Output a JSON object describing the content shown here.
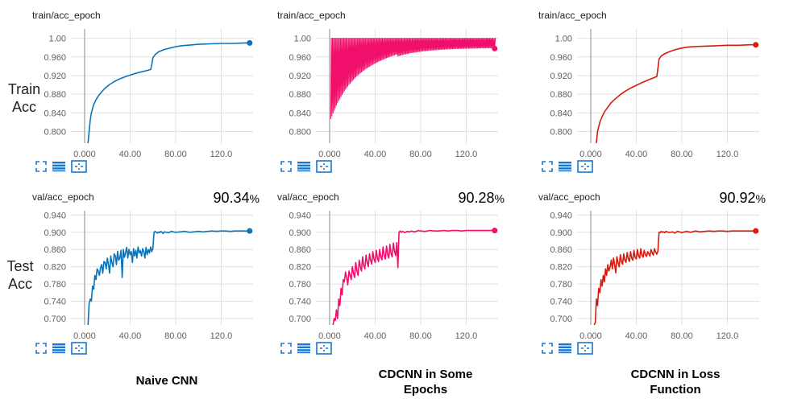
{
  "row_labels": {
    "train": [
      "Train",
      "Acc"
    ],
    "test": [
      "Test",
      "Acc"
    ]
  },
  "captions": [
    [
      "Naive CNN"
    ],
    [
      "CDCNN in Some",
      "Epochs"
    ],
    [
      "CDCNN in Loss",
      "Function"
    ]
  ],
  "colors": {
    "naive": "#0b74b8",
    "some_epochs": "#f0106b",
    "loss_function": "#d81b0e",
    "grid": "#e0e0e0",
    "toolbar": "#1976d2"
  },
  "toolbar_icons": [
    "expand-icon",
    "data-list-icon",
    "fit-domain-icon"
  ],
  "chart_data": [
    {
      "id": "naive-train",
      "type": "line",
      "title": "train/acc_epoch",
      "accuracy": "",
      "color": "naive",
      "model": "naive",
      "split": "train",
      "xlim": [
        -12,
        148
      ],
      "ylim": [
        0.775,
        1.02
      ],
      "x_ticks": [
        0,
        40,
        80,
        120
      ],
      "x_tick_labels": [
        "0.000",
        "40.00",
        "80.00",
        "120.0"
      ],
      "y_ticks": [
        0.8,
        0.84,
        0.88,
        0.92,
        0.96,
        1.0
      ],
      "y_tick_labels": [
        "0.800",
        "0.840",
        "0.880",
        "0.920",
        "0.960",
        "1.00"
      ],
      "series": [
        {
          "x": [
            3,
            4,
            5,
            6,
            8,
            10,
            12,
            15,
            18,
            22,
            26,
            30,
            35,
            40,
            45,
            50,
            55,
            58,
            59,
            60,
            62,
            65,
            70,
            75,
            80,
            85,
            90,
            100,
            110,
            120,
            130,
            140,
            145
          ],
          "y": [
            0.775,
            0.8,
            0.825,
            0.84,
            0.858,
            0.868,
            0.876,
            0.885,
            0.893,
            0.901,
            0.907,
            0.912,
            0.917,
            0.921,
            0.925,
            0.928,
            0.931,
            0.933,
            0.943,
            0.958,
            0.965,
            0.971,
            0.976,
            0.979,
            0.982,
            0.984,
            0.985,
            0.987,
            0.988,
            0.989,
            0.989,
            0.99,
            0.99
          ]
        }
      ]
    },
    {
      "id": "naive-val",
      "type": "line",
      "title": "val/acc_epoch",
      "accuracy": "90.34",
      "color": "naive",
      "model": "naive",
      "split": "val",
      "xlim": [
        -12,
        148
      ],
      "ylim": [
        0.685,
        0.95
      ],
      "x_ticks": [
        0,
        40,
        80,
        120
      ],
      "x_tick_labels": [
        "0.000",
        "40.00",
        "80.00",
        "120.0"
      ],
      "y_ticks": [
        0.7,
        0.74,
        0.78,
        0.82,
        0.86,
        0.9,
        0.94
      ],
      "y_tick_labels": [
        "0.700",
        "0.740",
        "0.780",
        "0.820",
        "0.860",
        "0.900",
        "0.940"
      ],
      "series": [
        {
          "x": [
            3,
            4,
            5,
            6,
            7,
            8,
            9,
            10,
            11,
            12,
            13,
            14,
            15,
            16,
            17,
            18,
            19,
            20,
            21,
            22,
            23,
            24,
            25,
            26,
            27,
            28,
            29,
            30,
            31,
            32,
            33,
            34,
            35,
            36,
            37,
            38,
            39,
            40,
            41,
            42,
            43,
            44,
            45,
            46,
            47,
            48,
            49,
            50,
            51,
            52,
            53,
            54,
            55,
            56,
            57,
            58,
            59,
            60,
            61,
            62,
            63,
            64,
            65,
            66,
            67,
            68,
            69,
            70,
            72,
            74,
            76,
            78,
            80,
            84,
            88,
            92,
            96,
            100,
            104,
            108,
            112,
            116,
            120,
            124,
            128,
            132,
            136,
            140,
            145
          ],
          "y": [
            0.685,
            0.735,
            0.745,
            0.74,
            0.775,
            0.768,
            0.8,
            0.79,
            0.815,
            0.81,
            0.8,
            0.818,
            0.825,
            0.805,
            0.832,
            0.83,
            0.815,
            0.84,
            0.825,
            0.805,
            0.845,
            0.83,
            0.82,
            0.85,
            0.845,
            0.825,
            0.856,
            0.835,
            0.84,
            0.858,
            0.795,
            0.86,
            0.842,
            0.853,
            0.865,
            0.84,
            0.86,
            0.848,
            0.855,
            0.83,
            0.862,
            0.845,
            0.858,
            0.84,
            0.866,
            0.852,
            0.857,
            0.845,
            0.862,
            0.855,
            0.84,
            0.865,
            0.848,
            0.86,
            0.852,
            0.866,
            0.855,
            0.862,
            0.9,
            0.902,
            0.9,
            0.898,
            0.901,
            0.899,
            0.902,
            0.9,
            0.897,
            0.901,
            0.9,
            0.899,
            0.902,
            0.901,
            0.9,
            0.901,
            0.902,
            0.9,
            0.901,
            0.902,
            0.901,
            0.902,
            0.903,
            0.902,
            0.903,
            0.903,
            0.902,
            0.903,
            0.903,
            0.903,
            0.903
          ]
        }
      ]
    },
    {
      "id": "some-train",
      "type": "line",
      "title": "train/acc_epoch",
      "accuracy": "",
      "color": "some_epochs",
      "model": "some_epochs",
      "split": "train",
      "xlim": [
        -12,
        148
      ],
      "ylim": [
        0.775,
        1.02
      ],
      "x_ticks": [
        0,
        40,
        80,
        120
      ],
      "x_tick_labels": [
        "0.000",
        "40.00",
        "80.00",
        "120.0"
      ],
      "y_ticks": [
        0.8,
        0.84,
        0.88,
        0.92,
        0.96,
        1.0
      ],
      "y_tick_labels": [
        "0.800",
        "0.840",
        "0.880",
        "0.920",
        "0.960",
        "1.00"
      ],
      "series": [
        {
          "x": [],
          "y": []
        }
      ]
    },
    {
      "id": "some-val",
      "type": "line",
      "title": "val/acc_epoch",
      "accuracy": "90.28",
      "color": "some_epochs",
      "model": "some_epochs",
      "split": "val",
      "xlim": [
        -12,
        148
      ],
      "ylim": [
        0.685,
        0.95
      ],
      "x_ticks": [
        0,
        40,
        80,
        120
      ],
      "x_tick_labels": [
        "0.000",
        "40.00",
        "80.00",
        "120.0"
      ],
      "y_ticks": [
        0.7,
        0.74,
        0.78,
        0.82,
        0.86,
        0.9,
        0.94
      ],
      "y_tick_labels": [
        "0.700",
        "0.740",
        "0.780",
        "0.820",
        "0.860",
        "0.900",
        "0.940"
      ],
      "series": [
        {
          "x": [
            3,
            4,
            5,
            6,
            7,
            8,
            9,
            10,
            11,
            12,
            13,
            14,
            15,
            16,
            17,
            18,
            19,
            20,
            21,
            22,
            23,
            24,
            25,
            26,
            27,
            28,
            29,
            30,
            31,
            32,
            33,
            34,
            35,
            36,
            37,
            38,
            39,
            40,
            41,
            42,
            43,
            44,
            45,
            46,
            47,
            48,
            49,
            50,
            51,
            52,
            53,
            54,
            55,
            56,
            57,
            58,
            59,
            60,
            61,
            62,
            63,
            64,
            65,
            66,
            68,
            70,
            72,
            74,
            76,
            78,
            80,
            84,
            88,
            92,
            96,
            100,
            104,
            108,
            112,
            116,
            120,
            124,
            128,
            132,
            136,
            140,
            145
          ],
          "y": [
            0.685,
            0.7,
            0.695,
            0.72,
            0.7,
            0.745,
            0.73,
            0.77,
            0.755,
            0.79,
            0.785,
            0.808,
            0.795,
            0.778,
            0.81,
            0.8,
            0.79,
            0.82,
            0.805,
            0.795,
            0.83,
            0.812,
            0.8,
            0.835,
            0.82,
            0.81,
            0.843,
            0.823,
            0.815,
            0.847,
            0.83,
            0.82,
            0.85,
            0.835,
            0.826,
            0.855,
            0.838,
            0.83,
            0.858,
            0.84,
            0.832,
            0.86,
            0.843,
            0.836,
            0.866,
            0.845,
            0.838,
            0.868,
            0.848,
            0.84,
            0.872,
            0.85,
            0.843,
            0.875,
            0.855,
            0.846,
            0.876,
            0.818,
            0.9,
            0.903,
            0.9,
            0.902,
            0.901,
            0.899,
            0.902,
            0.901,
            0.903,
            0.901,
            0.902,
            0.904,
            0.903,
            0.902,
            0.904,
            0.903,
            0.903,
            0.904,
            0.903,
            0.904,
            0.904,
            0.903,
            0.904,
            0.904,
            0.904,
            0.904,
            0.904,
            0.904,
            0.904
          ]
        }
      ]
    },
    {
      "id": "loss-train",
      "type": "line",
      "title": "train/acc_epoch",
      "accuracy": "",
      "color": "loss_function",
      "model": "loss_function",
      "split": "train",
      "xlim": [
        -12,
        148
      ],
      "ylim": [
        0.775,
        1.02
      ],
      "x_ticks": [
        0,
        40,
        80,
        120
      ],
      "x_tick_labels": [
        "0.000",
        "40.00",
        "80.00",
        "120.0"
      ],
      "y_ticks": [
        0.8,
        0.84,
        0.88,
        0.92,
        0.96,
        1.0
      ],
      "y_tick_labels": [
        "0.800",
        "0.840",
        "0.880",
        "0.920",
        "0.960",
        "1.00"
      ],
      "series": [
        {
          "x": [
            5,
            6,
            8,
            10,
            12,
            15,
            18,
            22,
            26,
            30,
            35,
            40,
            45,
            50,
            55,
            58,
            59,
            60,
            62,
            65,
            70,
            75,
            80,
            85,
            90,
            100,
            110,
            120,
            130,
            140,
            145
          ],
          "y": [
            0.775,
            0.8,
            0.82,
            0.832,
            0.842,
            0.852,
            0.862,
            0.871,
            0.879,
            0.886,
            0.893,
            0.899,
            0.905,
            0.91,
            0.915,
            0.918,
            0.935,
            0.955,
            0.962,
            0.967,
            0.972,
            0.976,
            0.979,
            0.981,
            0.982,
            0.983,
            0.984,
            0.985,
            0.985,
            0.986,
            0.986
          ]
        }
      ]
    },
    {
      "id": "loss-val",
      "type": "line",
      "title": "val/acc_epoch",
      "accuracy": "90.92",
      "color": "loss_function",
      "model": "loss_function",
      "split": "val",
      "xlim": [
        -12,
        148
      ],
      "ylim": [
        0.685,
        0.95
      ],
      "x_ticks": [
        0,
        40,
        80,
        120
      ],
      "x_tick_labels": [
        "0.000",
        "40.00",
        "80.00",
        "120.0"
      ],
      "y_ticks": [
        0.7,
        0.74,
        0.78,
        0.82,
        0.86,
        0.9,
        0.94
      ],
      "y_tick_labels": [
        "0.700",
        "0.740",
        "0.780",
        "0.820",
        "0.860",
        "0.900",
        "0.940"
      ],
      "series": [
        {
          "x": [
            3,
            4,
            5,
            6,
            7,
            8,
            9,
            10,
            11,
            12,
            13,
            14,
            15,
            16,
            17,
            18,
            19,
            20,
            21,
            22,
            23,
            24,
            25,
            26,
            27,
            28,
            29,
            30,
            31,
            32,
            33,
            34,
            35,
            36,
            37,
            38,
            39,
            40,
            41,
            42,
            43,
            44,
            45,
            46,
            47,
            48,
            49,
            50,
            51,
            52,
            53,
            54,
            55,
            56,
            57,
            58,
            59,
            60,
            61,
            62,
            63,
            64,
            65,
            66,
            68,
            70,
            72,
            74,
            76,
            78,
            80,
            84,
            88,
            92,
            96,
            100,
            104,
            108,
            112,
            116,
            120,
            124,
            128,
            132,
            136,
            140,
            145
          ],
          "y": [
            0.685,
            0.69,
            0.745,
            0.73,
            0.77,
            0.76,
            0.79,
            0.775,
            0.8,
            0.785,
            0.815,
            0.8,
            0.825,
            0.81,
            0.82,
            0.835,
            0.815,
            0.84,
            0.825,
            0.806,
            0.843,
            0.83,
            0.82,
            0.848,
            0.832,
            0.826,
            0.85,
            0.835,
            0.83,
            0.853,
            0.838,
            0.832,
            0.855,
            0.84,
            0.835,
            0.858,
            0.842,
            0.838,
            0.86,
            0.845,
            0.84,
            0.862,
            0.847,
            0.842,
            0.858,
            0.848,
            0.844,
            0.855,
            0.85,
            0.845,
            0.86,
            0.852,
            0.847,
            0.862,
            0.854,
            0.849,
            0.856,
            0.9,
            0.899,
            0.902,
            0.9,
            0.901,
            0.899,
            0.902,
            0.9,
            0.9,
            0.901,
            0.898,
            0.902,
            0.901,
            0.899,
            0.902,
            0.9,
            0.903,
            0.901,
            0.902,
            0.903,
            0.902,
            0.903,
            0.903,
            0.902,
            0.903,
            0.903,
            0.903,
            0.903,
            0.903,
            0.903
          ]
        }
      ]
    }
  ]
}
